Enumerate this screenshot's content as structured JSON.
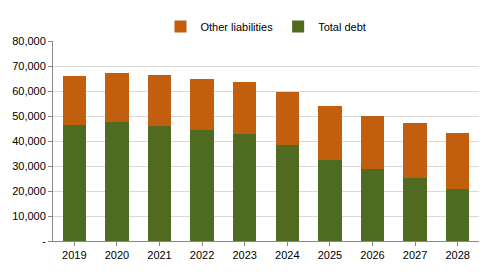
{
  "chart_data": {
    "type": "bar",
    "stacked": true,
    "legend": "top",
    "grid": true,
    "categories": [
      "2019",
      "2020",
      "2021",
      "2022",
      "2023",
      "2024",
      "2025",
      "2026",
      "2027",
      "2028"
    ],
    "series": [
      {
        "name": "Total debt",
        "color": "#4e6b1f",
        "values": [
          46500,
          47500,
          46000,
          44500,
          42800,
          38500,
          32500,
          28700,
          25300,
          21000
        ]
      },
      {
        "name": "Other liabilities",
        "color": "#c15f0e",
        "values": [
          19500,
          19700,
          20300,
          20500,
          20700,
          21300,
          21500,
          21500,
          21900,
          22400
        ]
      }
    ],
    "ylim": [
      0,
      80000
    ],
    "yticks": [
      {
        "value": 0,
        "label": "-"
      },
      {
        "value": 10000,
        "label": "10,000"
      },
      {
        "value": 20000,
        "label": "20,000"
      },
      {
        "value": 30000,
        "label": "30,000"
      },
      {
        "value": 40000,
        "label": "40,000"
      },
      {
        "value": 50000,
        "label": "50,000"
      },
      {
        "value": 60000,
        "label": "60,000"
      },
      {
        "value": 70000,
        "label": "70,000"
      },
      {
        "value": 80000,
        "label": "80,000"
      }
    ]
  }
}
